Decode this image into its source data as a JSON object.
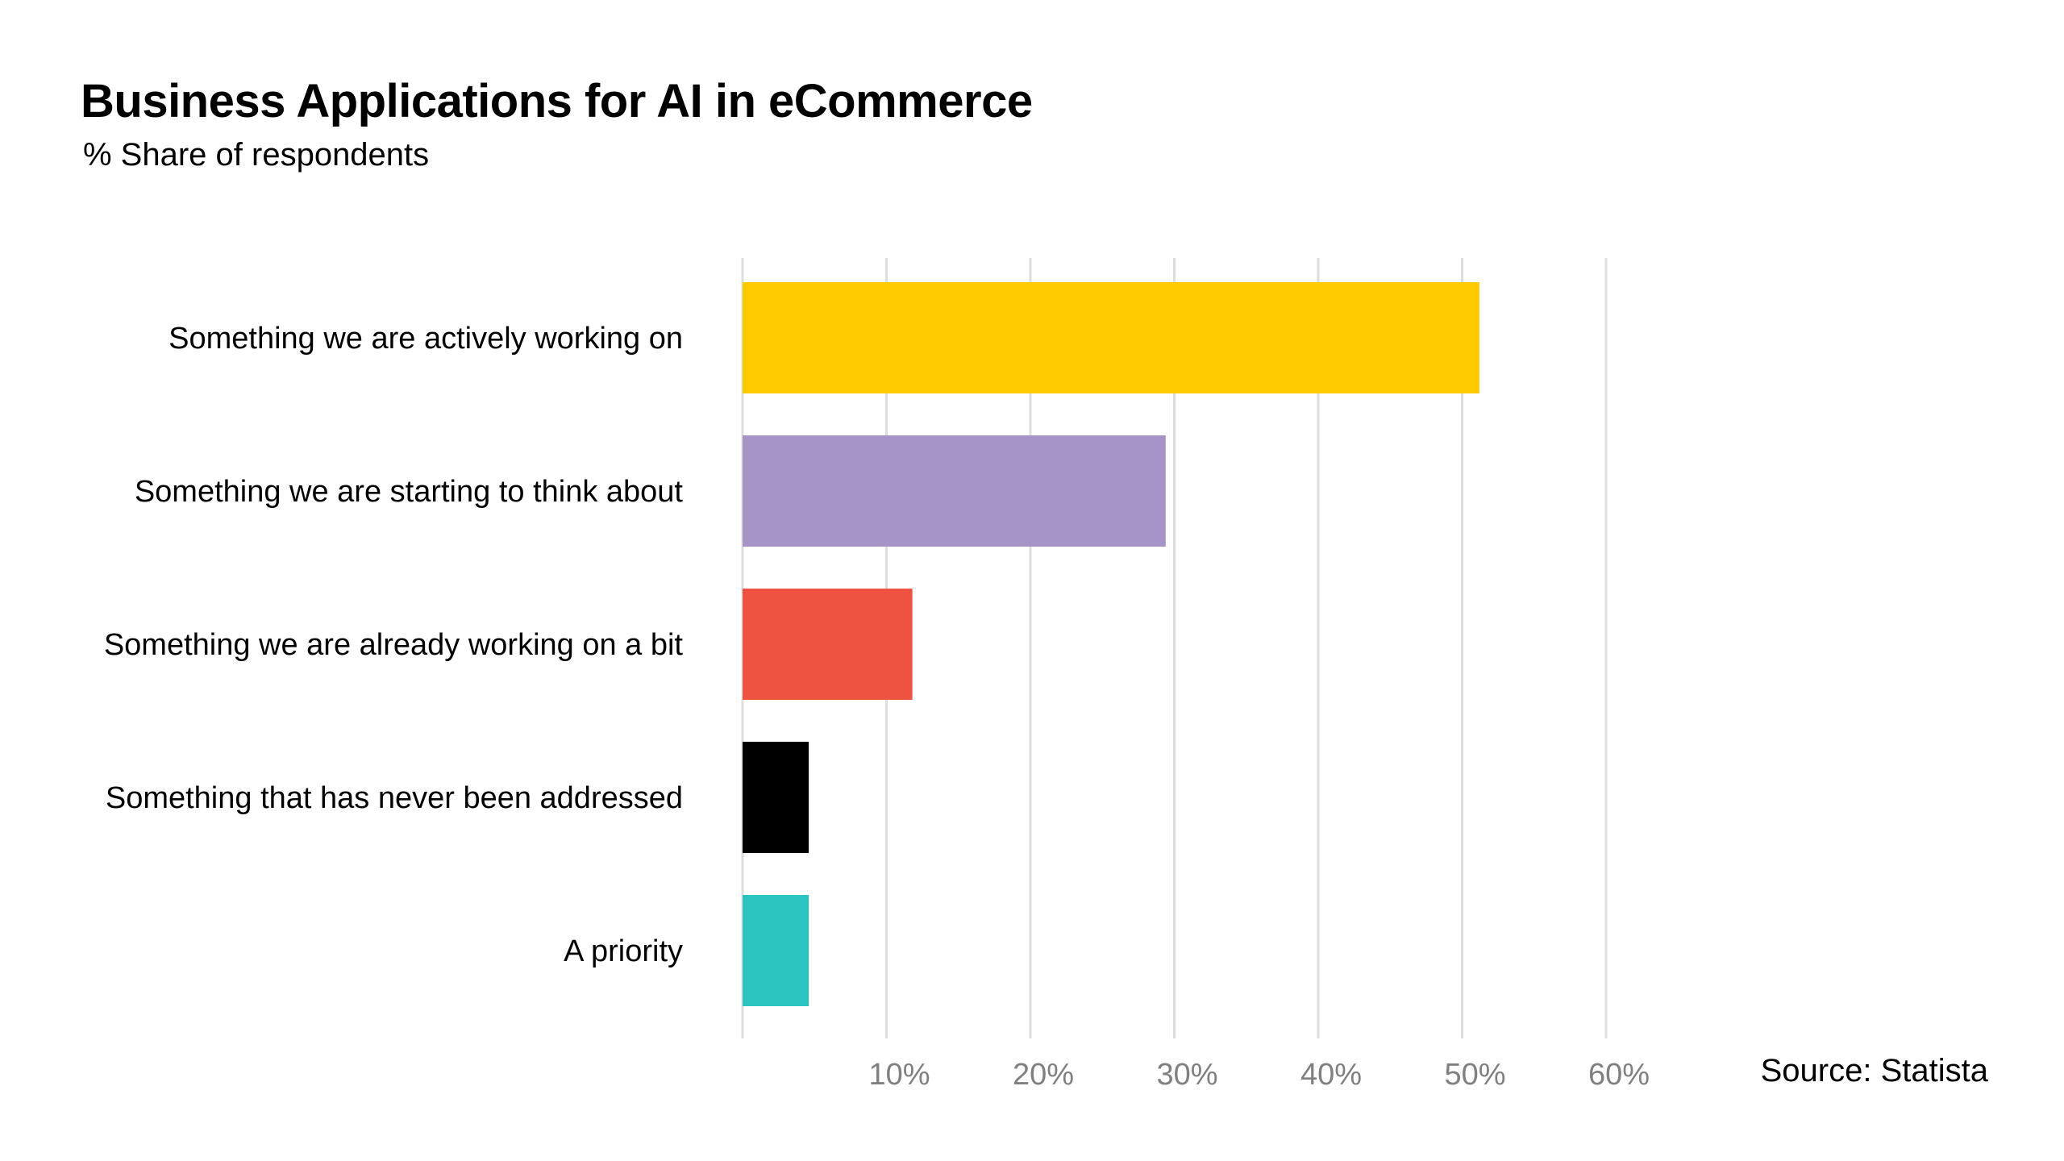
{
  "title": "Business Applications for AI in eCommerce",
  "subtitle": "% Share of respondents",
  "source": "Source: Statista",
  "chart_data": {
    "type": "bar",
    "orientation": "horizontal",
    "title": "Business Applications for AI in eCommerce",
    "subtitle": "% Share of respondents",
    "categories": [
      "Something we are actively working on",
      "Something we are starting to think about",
      "Something we are already working on a bit",
      "Something that has never been addressed",
      "A priority"
    ],
    "values": [
      51.2,
      29.4,
      11.8,
      4.6,
      4.6
    ],
    "colors": [
      "#FFCA00",
      "#A794C6",
      "#EE5240",
      "#000000",
      "#2CC4BE"
    ],
    "xlim": [
      0,
      60
    ],
    "xticks": [
      10,
      20,
      30,
      40,
      50,
      60
    ],
    "xtick_labels": [
      "10%",
      "20%",
      "30%",
      "40%",
      "50%",
      "60%"
    ],
    "grid": "vertical",
    "gridline_color": "#DDDDDD",
    "legend": "none",
    "xlabel": "",
    "ylabel": ""
  }
}
